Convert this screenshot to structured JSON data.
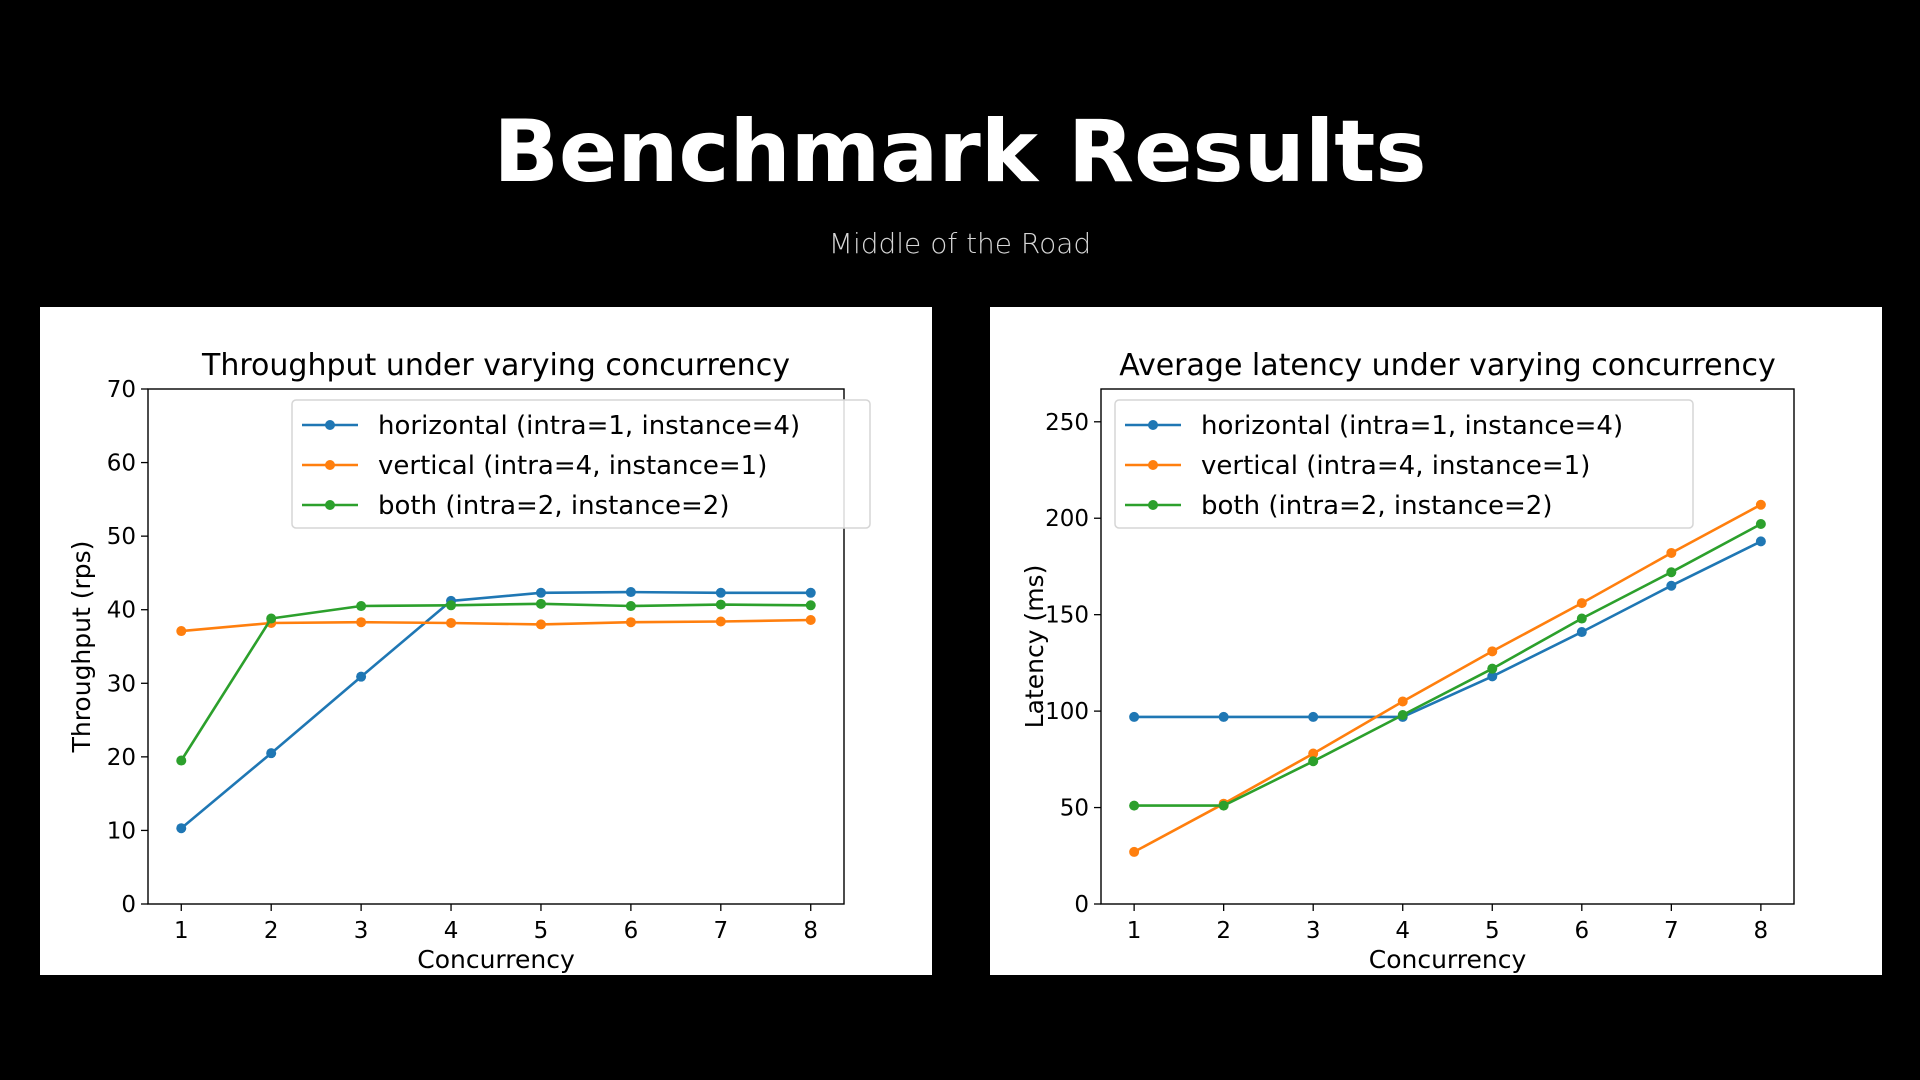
{
  "slide": {
    "title": "Benchmark Results",
    "subtitle": "Middle of the Road",
    "background": "#000000"
  },
  "chart_data": [
    {
      "type": "line",
      "title": "Throughput under varying concurrency",
      "xlabel": "Concurrency",
      "ylabel": "Throughput (rps)",
      "x": [
        1,
        2,
        3,
        4,
        5,
        6,
        7,
        8
      ],
      "xlim": [
        0.63,
        8.37
      ],
      "ylim": [
        0,
        70
      ],
      "yticks": [
        0,
        10,
        20,
        30,
        40,
        50,
        60,
        70
      ],
      "grid": false,
      "legend_position": "top-right",
      "series": [
        {
          "name": "horizontal (intra=1, instance=4)",
          "color": "#1f77b4",
          "values": [
            10.3,
            20.5,
            30.9,
            41.2,
            42.3,
            42.4,
            42.3,
            42.3
          ]
        },
        {
          "name": "vertical (intra=4, instance=1)",
          "color": "#ff7f0e",
          "values": [
            37.1,
            38.2,
            38.3,
            38.2,
            38.0,
            38.3,
            38.4,
            38.6
          ]
        },
        {
          "name": "both (intra=2, instance=2)",
          "color": "#2ca02c",
          "values": [
            19.5,
            38.8,
            40.5,
            40.6,
            40.8,
            40.5,
            40.7,
            40.6
          ]
        }
      ]
    },
    {
      "type": "line",
      "title": "Average latency under varying concurrency",
      "xlabel": "Concurrency",
      "ylabel": "Latency (ms)",
      "x": [
        1,
        2,
        3,
        4,
        5,
        6,
        7,
        8
      ],
      "xlim": [
        0.63,
        8.37
      ],
      "ylim": [
        0,
        267
      ],
      "yticks": [
        0,
        50,
        100,
        150,
        200,
        250
      ],
      "grid": false,
      "legend_position": "top-left",
      "series": [
        {
          "name": "horizontal (intra=1, instance=4)",
          "color": "#1f77b4",
          "values": [
            97,
            97,
            97,
            97,
            118,
            141,
            165,
            188
          ]
        },
        {
          "name": "vertical (intra=4, instance=1)",
          "color": "#ff7f0e",
          "values": [
            27,
            52,
            78,
            105,
            131,
            156,
            182,
            207
          ]
        },
        {
          "name": "both (intra=2, instance=2)",
          "color": "#2ca02c",
          "values": [
            51,
            51,
            74,
            98,
            122,
            148,
            172,
            197
          ]
        }
      ]
    }
  ]
}
